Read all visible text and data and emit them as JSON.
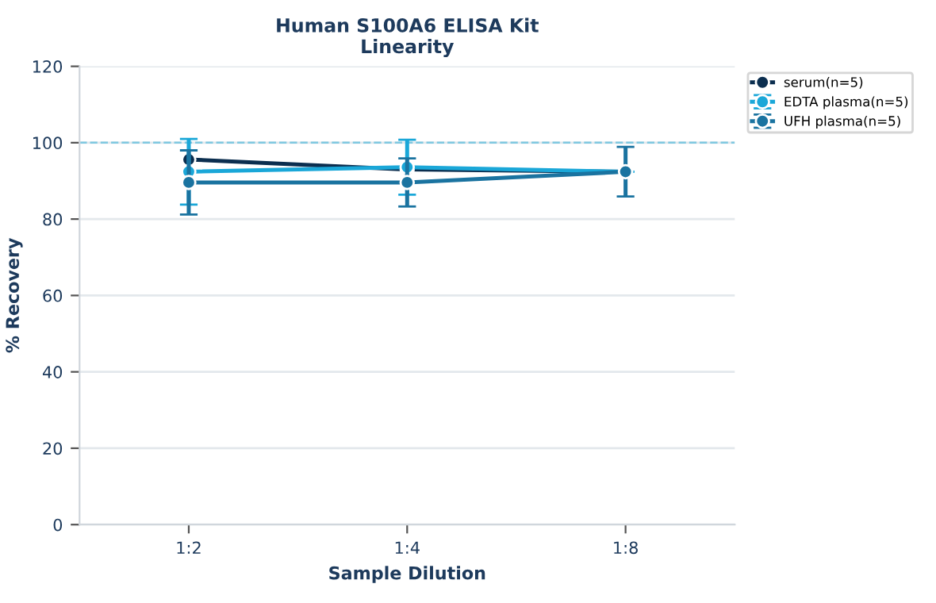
{
  "chart_data": {
    "type": "line",
    "title": "Human S100A6 ELISA Kit\nLinearity",
    "xlabel": "Sample Dilution",
    "ylabel": "% Recovery",
    "categories": [
      "1:2",
      "1:4",
      "1:8"
    ],
    "series": [
      {
        "name": "serum(n=5)",
        "color": "#0b2e4f",
        "values": [
          95.6,
          93.0,
          92.4
        ],
        "errors": [
          null,
          null,
          null
        ]
      },
      {
        "name": "EDTA plasma(n=5)",
        "color": "#1aa7d8",
        "values": [
          92.4,
          93.6,
          92.4
        ],
        "errors": [
          8.6,
          7.2,
          null
        ]
      },
      {
        "name": "UFH plasma(n=5)",
        "color": "#1a73a0",
        "values": [
          89.6,
          89.6,
          92.4
        ],
        "errors": [
          8.4,
          6.3,
          6.5
        ]
      }
    ],
    "ylim": [
      0,
      120
    ],
    "yticks": [
      0,
      20,
      40,
      60,
      80,
      100,
      120
    ],
    "grid": "y",
    "legend": "top right",
    "marker": "circle",
    "line_style": "solid",
    "ref_lines": [
      {
        "axis": "y",
        "value": 100,
        "color": "#7fc8e0",
        "line_style": "dashed"
      }
    ]
  }
}
